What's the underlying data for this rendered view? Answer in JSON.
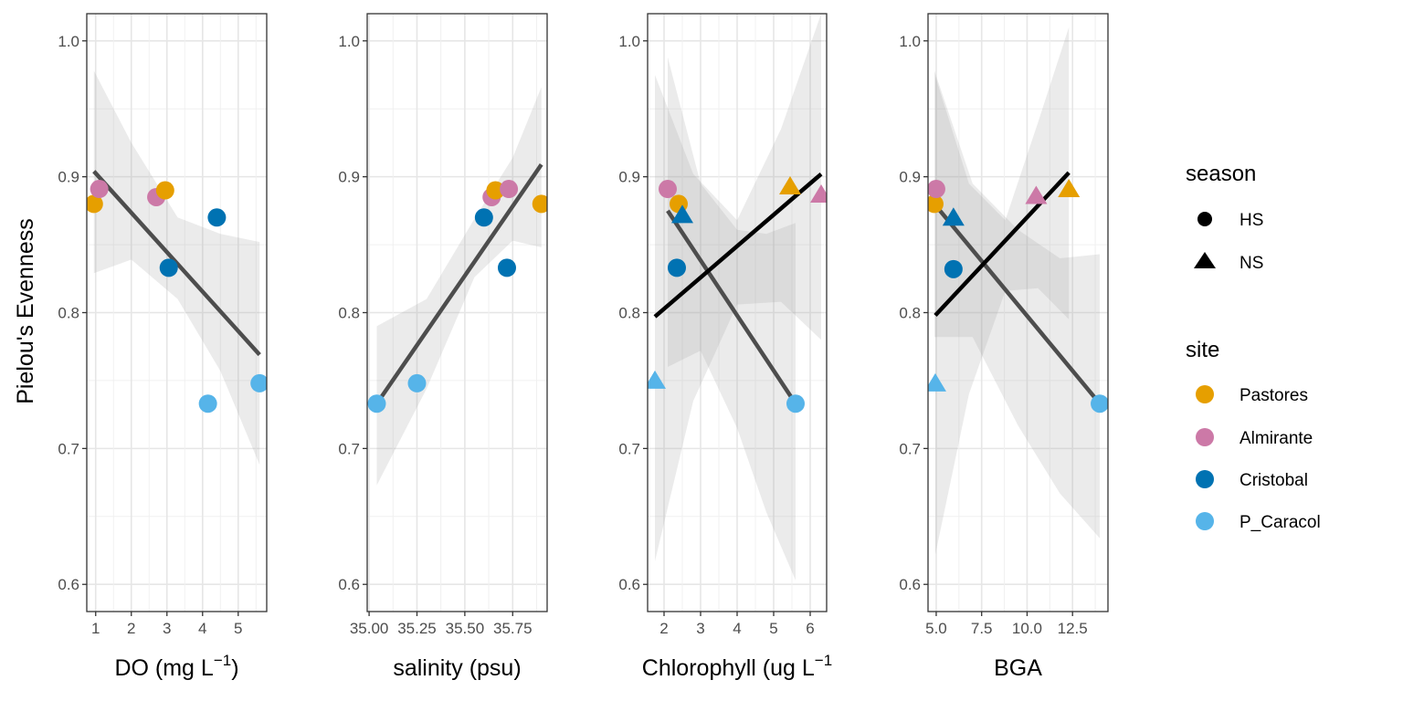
{
  "figure": {
    "ylabel": "Pielou's Evenness"
  },
  "legend": {
    "season_title": "season",
    "season_items": [
      {
        "label": "HS",
        "shape": "circle"
      },
      {
        "label": "NS",
        "shape": "triangle"
      }
    ],
    "site_title": "site",
    "site_items": [
      {
        "label": "Pastores",
        "color": "#E69F00"
      },
      {
        "label": "Almirante",
        "color": "#CC79A7"
      },
      {
        "label": "Cristobal",
        "color": "#0072B2"
      },
      {
        "label": "P_Caracol",
        "color": "#56B4E9"
      }
    ]
  },
  "chart_data": [
    {
      "type": "scatter",
      "xlabel": "DO (mg L⁻¹)",
      "xlabel_parts": {
        "base": "DO (mg L",
        "sup": "−1",
        "tail": ")"
      },
      "ylabel": "Pielou's Evenness",
      "xlim": [
        0.75,
        5.8
      ],
      "ylim": [
        0.58,
        1.02
      ],
      "xticks": [
        1,
        2,
        3,
        4,
        5
      ],
      "xtick_labels": [
        "1",
        "2",
        "3",
        "4",
        "5"
      ],
      "yticks": [
        0.6,
        0.7,
        0.8,
        0.9,
        1.0
      ],
      "ytick_labels": [
        "0.6",
        "0.7",
        "0.8",
        "0.9",
        "1.0"
      ],
      "points": [
        {
          "x": 0.95,
          "y": 0.88,
          "site": "Pastores",
          "season": "HS"
        },
        {
          "x": 1.1,
          "y": 0.891,
          "site": "Almirante",
          "season": "HS"
        },
        {
          "x": 2.7,
          "y": 0.885,
          "site": "Almirante",
          "season": "HS"
        },
        {
          "x": 2.95,
          "y": 0.89,
          "site": "Pastores",
          "season": "HS"
        },
        {
          "x": 3.05,
          "y": 0.833,
          "site": "Cristobal",
          "season": "HS"
        },
        {
          "x": 4.4,
          "y": 0.87,
          "site": "Cristobal",
          "season": "HS"
        },
        {
          "x": 4.15,
          "y": 0.733,
          "site": "P_Caracol",
          "season": "HS"
        },
        {
          "x": 5.6,
          "y": 0.748,
          "site": "P_Caracol",
          "season": "HS"
        }
      ],
      "fits": [
        {
          "group": "HS",
          "x": [
            0.95,
            5.6
          ],
          "y": [
            0.904,
            0.769
          ],
          "band": {
            "x": [
              0.95,
              2.0,
              3.3,
              4.5,
              5.6
            ],
            "lower": [
              0.829,
              0.839,
              0.81,
              0.757,
              0.688
            ],
            "upper": [
              0.978,
              0.925,
              0.87,
              0.858,
              0.852
            ]
          }
        }
      ]
    },
    {
      "type": "scatter",
      "xlabel": "salinity (psu)",
      "xlabel_parts": {
        "base": "salinity (psu)",
        "sup": "",
        "tail": ""
      },
      "ylabel": "Pielou's Evenness",
      "xlim": [
        34.99,
        35.93
      ],
      "ylim": [
        0.58,
        1.02
      ],
      "xticks": [
        35.0,
        35.25,
        35.5,
        35.75
      ],
      "xtick_labels": [
        "35.00",
        "35.25",
        "35.50",
        "35.75"
      ],
      "yticks": [
        0.6,
        0.7,
        0.8,
        0.9,
        1.0
      ],
      "ytick_labels": [
        "0.6",
        "0.7",
        "0.8",
        "0.9",
        "1.0"
      ],
      "points": [
        {
          "x": 35.04,
          "y": 0.733,
          "site": "P_Caracol",
          "season": "HS"
        },
        {
          "x": 35.25,
          "y": 0.748,
          "site": "P_Caracol",
          "season": "HS"
        },
        {
          "x": 35.6,
          "y": 0.87,
          "site": "Cristobal",
          "season": "HS"
        },
        {
          "x": 35.64,
          "y": 0.885,
          "site": "Almirante",
          "season": "HS"
        },
        {
          "x": 35.66,
          "y": 0.89,
          "site": "Pastores",
          "season": "HS"
        },
        {
          "x": 35.72,
          "y": 0.833,
          "site": "Cristobal",
          "season": "HS"
        },
        {
          "x": 35.73,
          "y": 0.891,
          "site": "Almirante",
          "season": "HS"
        },
        {
          "x": 35.9,
          "y": 0.88,
          "site": "Pastores",
          "season": "HS"
        }
      ],
      "fits": [
        {
          "group": "HS",
          "x": [
            35.04,
            35.9
          ],
          "y": [
            0.733,
            0.909
          ],
          "band": {
            "x": [
              35.04,
              35.3,
              35.55,
              35.75,
              35.9
            ],
            "lower": [
              0.673,
              0.744,
              0.826,
              0.853,
              0.848
            ],
            "upper": [
              0.79,
              0.81,
              0.869,
              0.914,
              0.966
            ]
          }
        }
      ]
    },
    {
      "type": "scatter",
      "xlabel": "Chlorophyll (ug L⁻¹)",
      "xlabel_parts": {
        "base": "Chlorophyll (ug L",
        "sup": "−1",
        "tail": ""
      },
      "ylabel": "Pielou's Evenness",
      "xlim": [
        1.55,
        6.45
      ],
      "ylim": [
        0.58,
        1.02
      ],
      "xticks": [
        2,
        3,
        4,
        5,
        6
      ],
      "xtick_labels": [
        "2",
        "3",
        "4",
        "5",
        "6"
      ],
      "yticks": [
        0.6,
        0.7,
        0.8,
        0.9,
        1.0
      ],
      "ytick_labels": [
        "0.6",
        "0.7",
        "0.8",
        "0.9",
        "1.0"
      ],
      "points": [
        {
          "x": 2.1,
          "y": 0.891,
          "site": "Almirante",
          "season": "HS"
        },
        {
          "x": 2.4,
          "y": 0.88,
          "site": "Pastores",
          "season": "HS"
        },
        {
          "x": 2.35,
          "y": 0.833,
          "site": "Cristobal",
          "season": "HS"
        },
        {
          "x": 5.6,
          "y": 0.733,
          "site": "P_Caracol",
          "season": "HS"
        },
        {
          "x": 1.75,
          "y": 0.75,
          "site": "P_Caracol",
          "season": "NS"
        },
        {
          "x": 2.5,
          "y": 0.872,
          "site": "Cristobal",
          "season": "NS"
        },
        {
          "x": 5.45,
          "y": 0.893,
          "site": "Pastores",
          "season": "NS"
        },
        {
          "x": 6.3,
          "y": 0.887,
          "site": "Almirante",
          "season": "NS"
        }
      ],
      "fits": [
        {
          "group": "HS",
          "x": [
            2.1,
            5.6
          ],
          "y": [
            0.875,
            0.733
          ],
          "band": {
            "x": [
              2.1,
              3.0,
              4.0,
              4.8,
              5.6
            ],
            "lower": [
              0.76,
              0.772,
              0.715,
              0.653,
              0.603
            ],
            "upper": [
              0.988,
              0.895,
              0.861,
              0.858,
              0.866
            ]
          }
        },
        {
          "group": "NS",
          "x": [
            1.75,
            6.3
          ],
          "y": [
            0.797,
            0.902
          ],
          "band": {
            "x": [
              1.75,
              2.8,
              4.0,
              5.2,
              6.3
            ],
            "lower": [
              0.617,
              0.735,
              0.806,
              0.808,
              0.78
            ],
            "upper": [
              0.975,
              0.902,
              0.868,
              0.935,
              1.02
            ]
          }
        }
      ]
    },
    {
      "type": "scatter",
      "xlabel": "BGA",
      "xlabel_parts": {
        "base": "BGA",
        "sup": "",
        "tail": ""
      },
      "ylabel": "Pielou's Evenness",
      "xlim": [
        4.55,
        14.45
      ],
      "ylim": [
        0.58,
        1.02
      ],
      "xticks": [
        5.0,
        7.5,
        10.0,
        12.5
      ],
      "xtick_labels": [
        "5.0",
        "7.5",
        "10.0",
        "12.5"
      ],
      "yticks": [
        0.6,
        0.7,
        0.8,
        0.9,
        1.0
      ],
      "ytick_labels": [
        "0.6",
        "0.7",
        "0.8",
        "0.9",
        "1.0"
      ],
      "points": [
        {
          "x": 4.9,
          "y": 0.88,
          "site": "Pastores",
          "season": "HS"
        },
        {
          "x": 5.0,
          "y": 0.891,
          "site": "Almirante",
          "season": "HS"
        },
        {
          "x": 5.95,
          "y": 0.832,
          "site": "Cristobal",
          "season": "HS"
        },
        {
          "x": 14.0,
          "y": 0.733,
          "site": "P_Caracol",
          "season": "HS"
        },
        {
          "x": 4.95,
          "y": 0.748,
          "site": "P_Caracol",
          "season": "NS"
        },
        {
          "x": 5.95,
          "y": 0.87,
          "site": "Cristobal",
          "season": "NS"
        },
        {
          "x": 10.5,
          "y": 0.886,
          "site": "Almirante",
          "season": "NS"
        },
        {
          "x": 12.3,
          "y": 0.891,
          "site": "Pastores",
          "season": "NS"
        }
      ],
      "fits": [
        {
          "group": "HS",
          "x": [
            4.9,
            14.0
          ],
          "y": [
            0.88,
            0.733
          ],
          "band": {
            "x": [
              4.9,
              7.0,
              9.5,
              11.8,
              14.0
            ],
            "lower": [
              0.782,
              0.782,
              0.717,
              0.667,
              0.634
            ],
            "upper": [
              0.978,
              0.895,
              0.861,
              0.84,
              0.843
            ]
          }
        },
        {
          "group": "NS",
          "x": [
            4.95,
            12.3
          ],
          "y": [
            0.798,
            0.903
          ],
          "band": {
            "x": [
              4.95,
              6.8,
              8.8,
              10.6,
              12.3
            ],
            "lower": [
              0.622,
              0.74,
              0.816,
              0.818,
              0.795
            ],
            "upper": [
              0.974,
              0.895,
              0.868,
              0.94,
              1.01
            ]
          }
        }
      ]
    }
  ]
}
